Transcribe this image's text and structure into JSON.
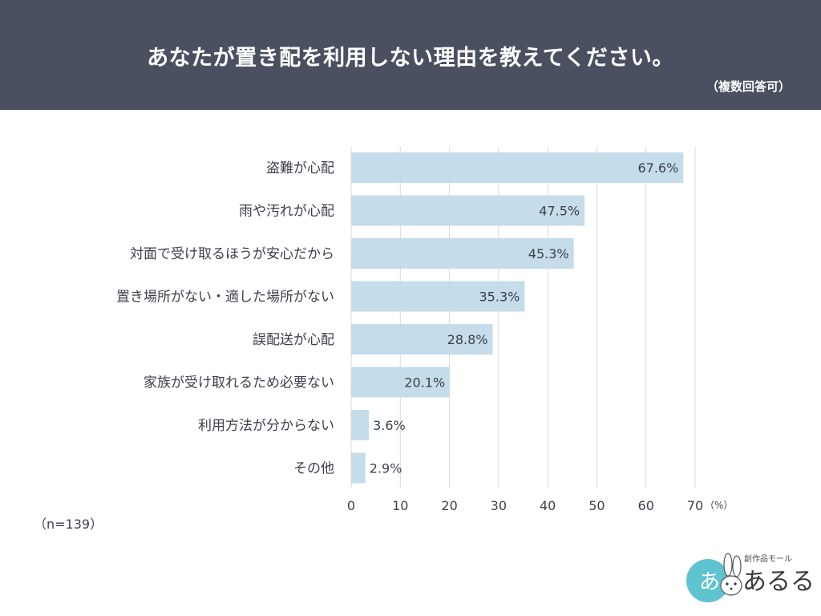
{
  "header": {
    "title": "あなたが置き配を利用しない理由を教えてください。",
    "subtitle": "（複数回答可）"
  },
  "note": "（n=139）",
  "logo": {
    "tagline": "創作品モール",
    "name": "あるる",
    "emblem_text": "あ"
  },
  "colors": {
    "header_bg": "#4a5060",
    "bar": "#c5dcea",
    "grid": "#d9d9d9",
    "text": "#3d3f4d",
    "logo_circle": "#5fc4cf"
  },
  "chart_data": {
    "type": "bar",
    "orientation": "horizontal",
    "categories": [
      "盗難が心配",
      "雨や汚れが心配",
      "対面で受け取るほうが安心だから",
      "置き場所がない・適した場所がない",
      "誤配送が心配",
      "家族が受け取れるため必要ない",
      "利用方法が分からない",
      "その他"
    ],
    "values": [
      67.6,
      47.5,
      45.3,
      35.3,
      28.8,
      20.1,
      3.6,
      2.9
    ],
    "value_labels": [
      "67.6%",
      "47.5%",
      "45.3%",
      "35.3%",
      "28.8%",
      "20.1%",
      "3.6%",
      "2.9%"
    ],
    "xlim": [
      0,
      70
    ],
    "xticks": [
      0,
      10,
      20,
      30,
      40,
      50,
      60,
      70
    ],
    "xunit": "（%）",
    "grid": "vertical",
    "legend": "none"
  }
}
